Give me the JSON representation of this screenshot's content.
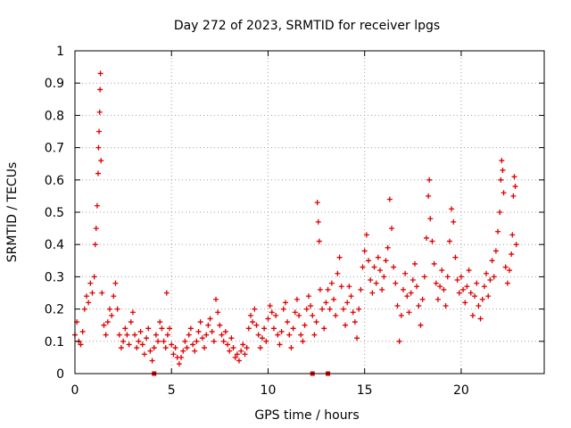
{
  "chart_data": {
    "type": "scatter",
    "title": "Day 272 of 2023, SRMTID for receiver lpgs",
    "xlabel": "GPS time / hours",
    "ylabel": "SRMTID / TECUs",
    "xlim": [
      0,
      24.3
    ],
    "ylim": [
      0,
      1
    ],
    "grid": true,
    "marker": "+",
    "color": "#e00000",
    "x_ticks": [
      0,
      5,
      10,
      15,
      20
    ],
    "x_tick_labels": [
      "0",
      "5",
      "10",
      "15",
      "20"
    ],
    "y_ticks": [
      0,
      0.1,
      0.2,
      0.3,
      0.4,
      0.5,
      0.6,
      0.7,
      0.8,
      0.9,
      1
    ],
    "y_tick_labels": [
      "0",
      "0.1",
      "0.2",
      "0.3",
      "0.4",
      "0.5",
      "0.6",
      "0.7",
      "0.8",
      "0.9",
      "1"
    ],
    "series": [
      {
        "name": "SRMTID",
        "points": [
          [
            0.0,
            0.12
          ],
          [
            0.1,
            0.16
          ],
          [
            0.2,
            0.1
          ],
          [
            0.3,
            0.09
          ],
          [
            0.4,
            0.13
          ],
          [
            0.5,
            0.2
          ],
          [
            0.6,
            0.24
          ],
          [
            0.7,
            0.22
          ],
          [
            0.8,
            0.28
          ],
          [
            0.9,
            0.25
          ],
          [
            1.0,
            0.3
          ],
          [
            1.05,
            0.4
          ],
          [
            1.1,
            0.45
          ],
          [
            1.15,
            0.52
          ],
          [
            1.2,
            0.62
          ],
          [
            1.22,
            0.7
          ],
          [
            1.25,
            0.75
          ],
          [
            1.28,
            0.81
          ],
          [
            1.3,
            0.88
          ],
          [
            1.32,
            0.93
          ],
          [
            1.35,
            0.66
          ],
          [
            1.4,
            0.25
          ],
          [
            1.5,
            0.15
          ],
          [
            1.6,
            0.12
          ],
          [
            1.7,
            0.16
          ],
          [
            1.8,
            0.2
          ],
          [
            1.9,
            0.18
          ],
          [
            2.0,
            0.24
          ],
          [
            2.1,
            0.28
          ],
          [
            2.2,
            0.2
          ],
          [
            2.3,
            0.12
          ],
          [
            2.4,
            0.08
          ],
          [
            2.5,
            0.1
          ],
          [
            2.6,
            0.14
          ],
          [
            2.7,
            0.12
          ],
          [
            2.8,
            0.09
          ],
          [
            2.9,
            0.16
          ],
          [
            3.0,
            0.19
          ],
          [
            3.1,
            0.12
          ],
          [
            3.2,
            0.08
          ],
          [
            3.3,
            0.1
          ],
          [
            3.4,
            0.13
          ],
          [
            3.5,
            0.09
          ],
          [
            3.6,
            0.06
          ],
          [
            3.7,
            0.11
          ],
          [
            3.8,
            0.14
          ],
          [
            3.9,
            0.07
          ],
          [
            4.0,
            0.04
          ],
          [
            4.1,
            0.08
          ],
          [
            4.2,
            0.12
          ],
          [
            4.3,
            0.1
          ],
          [
            4.4,
            0.16
          ],
          [
            4.5,
            0.14
          ],
          [
            4.6,
            0.1
          ],
          [
            4.7,
            0.08
          ],
          [
            4.75,
            0.25
          ],
          [
            4.8,
            0.12
          ],
          [
            4.9,
            0.14
          ],
          [
            5.0,
            0.09
          ],
          [
            5.1,
            0.06
          ],
          [
            5.2,
            0.08
          ],
          [
            5.3,
            0.05
          ],
          [
            5.4,
            0.03
          ],
          [
            5.5,
            0.05
          ],
          [
            5.6,
            0.07
          ],
          [
            5.7,
            0.1
          ],
          [
            5.8,
            0.08
          ],
          [
            5.9,
            0.12
          ],
          [
            6.0,
            0.14
          ],
          [
            6.1,
            0.09
          ],
          [
            6.2,
            0.07
          ],
          [
            6.3,
            0.1
          ],
          [
            6.4,
            0.13
          ],
          [
            6.5,
            0.16
          ],
          [
            6.6,
            0.11
          ],
          [
            6.7,
            0.08
          ],
          [
            6.8,
            0.12
          ],
          [
            6.9,
            0.15
          ],
          [
            7.0,
            0.17
          ],
          [
            7.1,
            0.13
          ],
          [
            7.2,
            0.1
          ],
          [
            7.3,
            0.23
          ],
          [
            7.4,
            0.19
          ],
          [
            7.5,
            0.15
          ],
          [
            7.6,
            0.12
          ],
          [
            7.7,
            0.1
          ],
          [
            7.8,
            0.13
          ],
          [
            7.9,
            0.09
          ],
          [
            8.0,
            0.07
          ],
          [
            8.1,
            0.11
          ],
          [
            8.2,
            0.08
          ],
          [
            8.3,
            0.05
          ],
          [
            8.4,
            0.06
          ],
          [
            8.5,
            0.04
          ],
          [
            8.6,
            0.07
          ],
          [
            8.7,
            0.09
          ],
          [
            8.8,
            0.06
          ],
          [
            8.9,
            0.08
          ],
          [
            9.0,
            0.14
          ],
          [
            9.1,
            0.18
          ],
          [
            9.2,
            0.16
          ],
          [
            9.3,
            0.2
          ],
          [
            9.4,
            0.15
          ],
          [
            9.5,
            0.12
          ],
          [
            9.6,
            0.08
          ],
          [
            9.7,
            0.11
          ],
          [
            9.8,
            0.14
          ],
          [
            9.9,
            0.1
          ],
          [
            10.0,
            0.17
          ],
          [
            10.1,
            0.21
          ],
          [
            10.2,
            0.19
          ],
          [
            10.3,
            0.14
          ],
          [
            10.4,
            0.18
          ],
          [
            10.5,
            0.12
          ],
          [
            10.6,
            0.09
          ],
          [
            10.7,
            0.13
          ],
          [
            10.8,
            0.2
          ],
          [
            10.9,
            0.22
          ],
          [
            11.0,
            0.16
          ],
          [
            11.1,
            0.12
          ],
          [
            11.2,
            0.08
          ],
          [
            11.3,
            0.14
          ],
          [
            11.4,
            0.19
          ],
          [
            11.5,
            0.23
          ],
          [
            11.6,
            0.18
          ],
          [
            11.7,
            0.12
          ],
          [
            11.8,
            0.1
          ],
          [
            11.9,
            0.15
          ],
          [
            12.0,
            0.2
          ],
          [
            12.1,
            0.24
          ],
          [
            12.2,
            0.21
          ],
          [
            12.3,
            0.18
          ],
          [
            12.4,
            0.12
          ],
          [
            12.5,
            0.16
          ],
          [
            12.55,
            0.53
          ],
          [
            12.6,
            0.47
          ],
          [
            12.65,
            0.41
          ],
          [
            12.7,
            0.26
          ],
          [
            12.8,
            0.2
          ],
          [
            12.9,
            0.14
          ],
          [
            13.0,
            0.22
          ],
          [
            13.1,
            0.26
          ],
          [
            13.2,
            0.2
          ],
          [
            13.3,
            0.28
          ],
          [
            13.4,
            0.23
          ],
          [
            13.5,
            0.18
          ],
          [
            13.6,
            0.31
          ],
          [
            13.7,
            0.36
          ],
          [
            13.8,
            0.27
          ],
          [
            13.9,
            0.2
          ],
          [
            14.0,
            0.15
          ],
          [
            14.1,
            0.22
          ],
          [
            14.2,
            0.27
          ],
          [
            14.3,
            0.24
          ],
          [
            14.4,
            0.19
          ],
          [
            14.5,
            0.16
          ],
          [
            14.6,
            0.11
          ],
          [
            14.7,
            0.2
          ],
          [
            14.8,
            0.26
          ],
          [
            14.9,
            0.33
          ],
          [
            15.0,
            0.38
          ],
          [
            15.1,
            0.43
          ],
          [
            15.2,
            0.35
          ],
          [
            15.3,
            0.29
          ],
          [
            15.4,
            0.25
          ],
          [
            15.5,
            0.33
          ],
          [
            15.6,
            0.28
          ],
          [
            15.7,
            0.36
          ],
          [
            15.8,
            0.32
          ],
          [
            15.9,
            0.26
          ],
          [
            16.0,
            0.3
          ],
          [
            16.1,
            0.35
          ],
          [
            16.2,
            0.39
          ],
          [
            16.3,
            0.54
          ],
          [
            16.4,
            0.45
          ],
          [
            16.5,
            0.33
          ],
          [
            16.6,
            0.28
          ],
          [
            16.7,
            0.21
          ],
          [
            16.8,
            0.1
          ],
          [
            16.9,
            0.18
          ],
          [
            17.0,
            0.26
          ],
          [
            17.1,
            0.31
          ],
          [
            17.2,
            0.24
          ],
          [
            17.3,
            0.19
          ],
          [
            17.4,
            0.25
          ],
          [
            17.5,
            0.29
          ],
          [
            17.6,
            0.34
          ],
          [
            17.7,
            0.27
          ],
          [
            17.8,
            0.21
          ],
          [
            17.9,
            0.15
          ],
          [
            18.0,
            0.23
          ],
          [
            18.1,
            0.3
          ],
          [
            18.2,
            0.42
          ],
          [
            18.3,
            0.55
          ],
          [
            18.35,
            0.6
          ],
          [
            18.4,
            0.48
          ],
          [
            18.5,
            0.41
          ],
          [
            18.6,
            0.34
          ],
          [
            18.7,
            0.28
          ],
          [
            18.8,
            0.23
          ],
          [
            18.9,
            0.27
          ],
          [
            19.0,
            0.32
          ],
          [
            19.1,
            0.26
          ],
          [
            19.2,
            0.21
          ],
          [
            19.3,
            0.3
          ],
          [
            19.4,
            0.41
          ],
          [
            19.5,
            0.51
          ],
          [
            19.6,
            0.47
          ],
          [
            19.7,
            0.36
          ],
          [
            19.8,
            0.29
          ],
          [
            19.9,
            0.25
          ],
          [
            20.0,
            0.3
          ],
          [
            20.1,
            0.26
          ],
          [
            20.2,
            0.22
          ],
          [
            20.3,
            0.27
          ],
          [
            20.4,
            0.32
          ],
          [
            20.5,
            0.25
          ],
          [
            20.6,
            0.18
          ],
          [
            20.7,
            0.24
          ],
          [
            20.8,
            0.28
          ],
          [
            20.9,
            0.21
          ],
          [
            21.0,
            0.17
          ],
          [
            21.1,
            0.23
          ],
          [
            21.2,
            0.27
          ],
          [
            21.3,
            0.31
          ],
          [
            21.4,
            0.24
          ],
          [
            21.5,
            0.29
          ],
          [
            21.6,
            0.35
          ],
          [
            21.7,
            0.3
          ],
          [
            21.8,
            0.38
          ],
          [
            21.9,
            0.44
          ],
          [
            22.0,
            0.5
          ],
          [
            22.05,
            0.6
          ],
          [
            22.1,
            0.66
          ],
          [
            22.15,
            0.63
          ],
          [
            22.2,
            0.56
          ],
          [
            22.3,
            0.33
          ],
          [
            22.4,
            0.28
          ],
          [
            22.5,
            0.32
          ],
          [
            22.6,
            0.37
          ],
          [
            22.65,
            0.43
          ],
          [
            22.7,
            0.55
          ],
          [
            22.75,
            0.61
          ],
          [
            22.8,
            0.58
          ],
          [
            22.85,
            0.4
          ]
        ]
      }
    ],
    "gap_markers_x": [
      4.1,
      12.3,
      13.1
    ]
  }
}
